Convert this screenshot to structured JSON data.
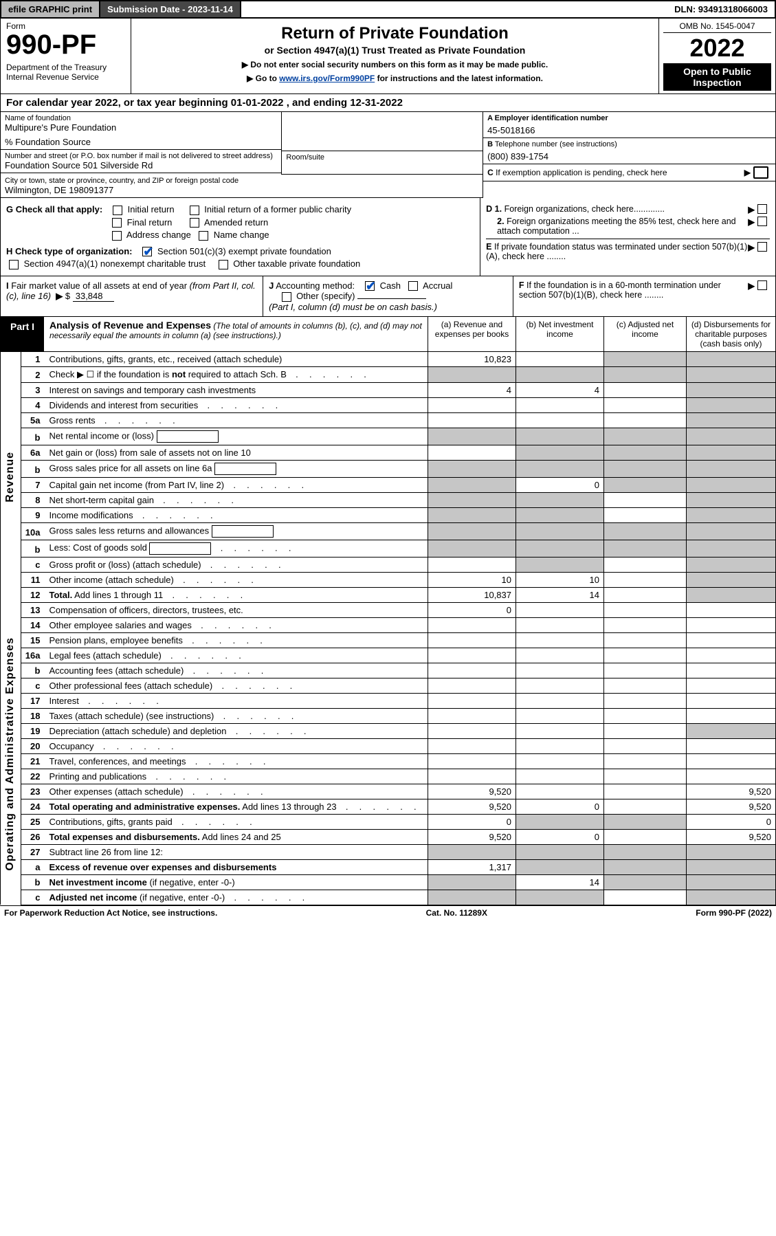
{
  "topbar": {
    "efile": "efile GRAPHIC print",
    "submission": "Submission Date - 2023-11-14",
    "dln": "DLN: 93491318066003"
  },
  "header": {
    "formword": "Form",
    "formnum": "990-PF",
    "dept": "Department of the Treasury\nInternal Revenue Service",
    "title": "Return of Private Foundation",
    "sub1": "or Section 4947(a)(1) Trust Treated as Private Foundation",
    "sub2a": "▶ Do not enter social security numbers on this form as it may be made public.",
    "sub2b": "▶ Go to ",
    "sub2link": "www.irs.gov/Form990PF",
    "sub2c": " for instructions and the latest information.",
    "omb": "OMB No. 1545-0047",
    "year": "2022",
    "openpub": "Open to Public Inspection"
  },
  "calyear": "For calendar year 2022, or tax year beginning 01-01-2022                 , and ending 12-31-2022",
  "info": {
    "name_lbl": "Name of foundation",
    "name_val": "Multipure's Pure Foundation",
    "careof": "% Foundation Source",
    "addr_lbl": "Number and street (or P.O. box number if mail is not delivered to street address)",
    "addr_val": "Foundation Source 501 Silverside Rd",
    "room_lbl": "Room/suite",
    "city_lbl": "City or town, state or province, country, and ZIP or foreign postal code",
    "city_val": "Wilmington, DE  198091377",
    "a_lbl": "A Employer identification number",
    "a_val": "45-5018166",
    "b_lbl": "B Telephone number (see instructions)",
    "b_val": "(800) 839-1754",
    "c_lbl": "C If exemption application is pending, check here",
    "d1": "D 1. Foreign organizations, check here.............",
    "d2": "2. Foreign organizations meeting the 85% test, check here and attach computation ...",
    "e": "E  If private foundation status was terminated under section 507(b)(1)(A), check here ........",
    "f": "F  If the foundation is in a 60-month termination under section 507(b)(1)(B), check here ........"
  },
  "g": {
    "lead": "G Check all that apply:",
    "opts": [
      "Initial return",
      "Final return",
      "Address change",
      "Initial return of a former public charity",
      "Amended return",
      "Name change"
    ]
  },
  "h": {
    "lead": "H Check type of organization:",
    "o1": "Section 501(c)(3) exempt private foundation",
    "o2": "Section 4947(a)(1) nonexempt charitable trust",
    "o3": "Other taxable private foundation"
  },
  "i": {
    "text": "I Fair market value of all assets at end of year (from Part II, col. (c), line 16)  ▶ $",
    "val": "33,848"
  },
  "j": {
    "lead": "J Accounting method:",
    "cash": "Cash",
    "accrual": "Accrual",
    "other": "Other (specify)",
    "note": "(Part I, column (d) must be on cash basis.)"
  },
  "part1": {
    "tab": "Part I",
    "title": "Analysis of Revenue and Expenses",
    "title_note": "(The total of amounts in columns (b), (c), and (d) may not necessarily equal the amounts in column (a) (see instructions).)",
    "cols": {
      "a": "(a)   Revenue and expenses per books",
      "b": "(b)   Net investment income",
      "c": "(c)   Adjusted net income",
      "d": "(d)  Disbursements for charitable purposes (cash basis only)"
    }
  },
  "rows": [
    {
      "n": "1",
      "d": "Contributions, gifts, grants, etc., received (attach schedule)",
      "a": "10,823",
      "b": "",
      "c": "g",
      "dd": "g"
    },
    {
      "n": "2",
      "d": "Check ▶ ☐ if the foundation is <b>not</b> required to attach Sch. B",
      "a": "g",
      "b": "g",
      "c": "g",
      "dd": "g",
      "dots": 1
    },
    {
      "n": "3",
      "d": "Interest on savings and temporary cash investments",
      "a": "4",
      "b": "4",
      "c": "",
      "dd": "g"
    },
    {
      "n": "4",
      "d": "Dividends and interest from securities",
      "a": "",
      "b": "",
      "c": "",
      "dd": "g",
      "dots": 1
    },
    {
      "n": "5a",
      "d": "Gross rents",
      "a": "",
      "b": "",
      "c": "",
      "dd": "g",
      "dots": 1
    },
    {
      "n": "b",
      "d": "Net rental income or (loss)",
      "a": "g",
      "b": "g",
      "c": "g",
      "dd": "g",
      "box": 1
    },
    {
      "n": "6a",
      "d": "Net gain or (loss) from sale of assets not on line 10",
      "a": "",
      "b": "g",
      "c": "g",
      "dd": "g"
    },
    {
      "n": "b",
      "d": "Gross sales price for all assets on line 6a",
      "a": "g",
      "b": "g",
      "c": "g",
      "dd": "g",
      "box": 1
    },
    {
      "n": "7",
      "d": "Capital gain net income (from Part IV, line 2)",
      "a": "g",
      "b": "0",
      "c": "g",
      "dd": "g",
      "dots": 1
    },
    {
      "n": "8",
      "d": "Net short-term capital gain",
      "a": "g",
      "b": "g",
      "c": "",
      "dd": "g",
      "dots": 1
    },
    {
      "n": "9",
      "d": "Income modifications",
      "a": "g",
      "b": "g",
      "c": "",
      "dd": "g",
      "dots": 1
    },
    {
      "n": "10a",
      "d": "Gross sales less returns and allowances",
      "a": "g",
      "b": "g",
      "c": "g",
      "dd": "g",
      "box": 1
    },
    {
      "n": "b",
      "d": "Less: Cost of goods sold",
      "a": "g",
      "b": "g",
      "c": "g",
      "dd": "g",
      "dots": 1,
      "box": 1
    },
    {
      "n": "c",
      "d": "Gross profit or (loss) (attach schedule)",
      "a": "",
      "b": "g",
      "c": "",
      "dd": "g",
      "dots": 1
    },
    {
      "n": "11",
      "d": "Other income (attach schedule)",
      "a": "10",
      "b": "10",
      "c": "",
      "dd": "g",
      "dots": 1
    },
    {
      "n": "12",
      "d": "<b>Total.</b> Add lines 1 through 11",
      "a": "10,837",
      "b": "14",
      "c": "",
      "dd": "g",
      "dots": 1,
      "bold": 1
    },
    {
      "n": "13",
      "d": "Compensation of officers, directors, trustees, etc.",
      "a": "0",
      "b": "",
      "c": "",
      "dd": ""
    },
    {
      "n": "14",
      "d": "Other employee salaries and wages",
      "a": "",
      "b": "",
      "c": "",
      "dd": "",
      "dots": 1
    },
    {
      "n": "15",
      "d": "Pension plans, employee benefits",
      "a": "",
      "b": "",
      "c": "",
      "dd": "",
      "dots": 1
    },
    {
      "n": "16a",
      "d": "Legal fees (attach schedule)",
      "a": "",
      "b": "",
      "c": "",
      "dd": "",
      "dots": 1
    },
    {
      "n": "b",
      "d": "Accounting fees (attach schedule)",
      "a": "",
      "b": "",
      "c": "",
      "dd": "",
      "dots": 1
    },
    {
      "n": "c",
      "d": "Other professional fees (attach schedule)",
      "a": "",
      "b": "",
      "c": "",
      "dd": "",
      "dots": 1
    },
    {
      "n": "17",
      "d": "Interest",
      "a": "",
      "b": "",
      "c": "",
      "dd": "",
      "dots": 1
    },
    {
      "n": "18",
      "d": "Taxes (attach schedule) (see instructions)",
      "a": "",
      "b": "",
      "c": "",
      "dd": "",
      "dots": 1
    },
    {
      "n": "19",
      "d": "Depreciation (attach schedule) and depletion",
      "a": "",
      "b": "",
      "c": "",
      "dd": "g",
      "dots": 1
    },
    {
      "n": "20",
      "d": "Occupancy",
      "a": "",
      "b": "",
      "c": "",
      "dd": "",
      "dots": 1
    },
    {
      "n": "21",
      "d": "Travel, conferences, and meetings",
      "a": "",
      "b": "",
      "c": "",
      "dd": "",
      "dots": 1
    },
    {
      "n": "22",
      "d": "Printing and publications",
      "a": "",
      "b": "",
      "c": "",
      "dd": "",
      "dots": 1
    },
    {
      "n": "23",
      "d": "Other expenses (attach schedule)",
      "a": "9,520",
      "b": "",
      "c": "",
      "dd": "9,520",
      "dots": 1
    },
    {
      "n": "24",
      "d": "<b>Total operating and administrative expenses.</b> Add lines 13 through 23",
      "a": "9,520",
      "b": "0",
      "c": "",
      "dd": "9,520",
      "dots": 1
    },
    {
      "n": "25",
      "d": "Contributions, gifts, grants paid",
      "a": "0",
      "b": "g",
      "c": "g",
      "dd": "0",
      "dots": 1
    },
    {
      "n": "26",
      "d": "<b>Total expenses and disbursements.</b> Add lines 24 and 25",
      "a": "9,520",
      "b": "0",
      "c": "",
      "dd": "9,520"
    },
    {
      "n": "27",
      "d": "Subtract line 26 from line 12:",
      "a": "g",
      "b": "g",
      "c": "g",
      "dd": "g"
    },
    {
      "n": "a",
      "d": "<b>Excess of revenue over expenses and disbursements</b>",
      "a": "1,317",
      "b": "g",
      "c": "g",
      "dd": "g"
    },
    {
      "n": "b",
      "d": "<b>Net investment income</b> (if negative, enter -0-)",
      "a": "g",
      "b": "14",
      "c": "g",
      "dd": "g"
    },
    {
      "n": "c",
      "d": "<b>Adjusted net income</b> (if negative, enter -0-)",
      "a": "g",
      "b": "g",
      "c": "",
      "dd": "g",
      "dots": 1
    }
  ],
  "sidelabels": {
    "rev": "Revenue",
    "exp": "Operating and Administrative Expenses"
  },
  "footer": {
    "left": "For Paperwork Reduction Act Notice, see instructions.",
    "mid": "Cat. No. 11289X",
    "right": "Form 990-PF (2022)"
  }
}
